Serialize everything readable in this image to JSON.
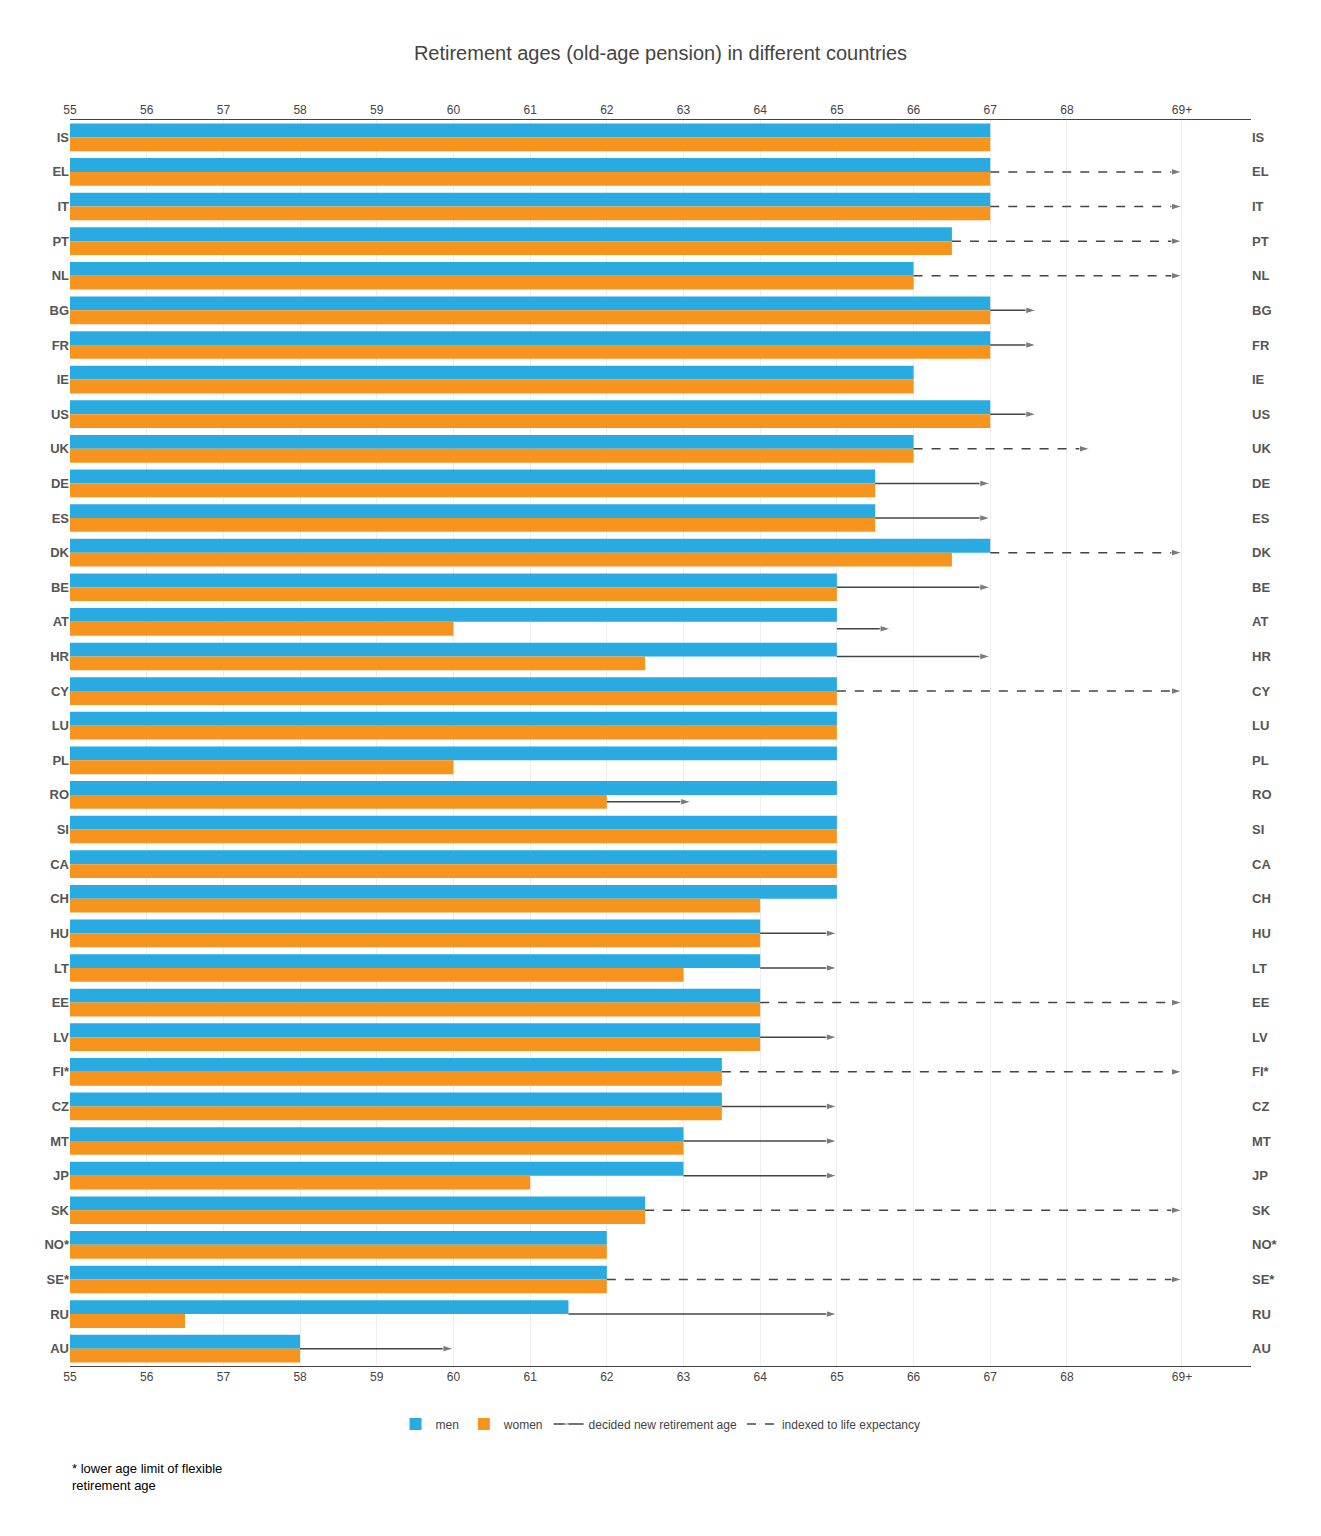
{
  "chart_data": {
    "type": "bar",
    "orientation": "horizontal",
    "title": "Retirement ages (old-age pension) in different countries",
    "categories": [
      "IS",
      "EL",
      "IT",
      "PT",
      "NL",
      "BG",
      "FR",
      "IE",
      "US",
      "UK",
      "DE",
      "ES",
      "DK",
      "BE",
      "AT",
      "HR",
      "CY",
      "LU",
      "PL",
      "RO",
      "SI",
      "CA",
      "CH",
      "HU",
      "LT",
      "EE",
      "LV",
      "FI*",
      "CZ",
      "MT",
      "JP",
      "SK",
      "NO*",
      "SE*",
      "RU",
      "AU"
    ],
    "series": [
      {
        "name": "men",
        "color": "#29ABE2",
        "values": [
          67,
          67,
          67,
          66.5,
          66,
          67,
          67,
          66,
          67,
          66,
          65.5,
          65.5,
          67,
          65,
          65,
          65,
          65,
          65,
          65,
          65,
          65,
          65,
          65,
          64,
          64,
          64,
          64,
          63.5,
          63.5,
          63,
          63,
          62.5,
          62,
          62,
          61.5,
          58
        ]
      },
      {
        "name": "women",
        "color": "#F7941D",
        "values": [
          67,
          67,
          67,
          66.5,
          66,
          67,
          67,
          66,
          67,
          66,
          65.5,
          65.5,
          66.5,
          65,
          60,
          62.5,
          65,
          65,
          60,
          62,
          65,
          65,
          64,
          64,
          63,
          64,
          64,
          63.5,
          63.5,
          63,
          61,
          62.5,
          62,
          62,
          56.5,
          58
        ]
      }
    ],
    "arrows": [
      {
        "name": "decided new retirement age",
        "line_style": "solid",
        "color": "#444444",
        "items": [
          {
            "category": "BG",
            "from": 67,
            "to": 67.6
          },
          {
            "category": "FR",
            "from": 67,
            "to": 67.6
          },
          {
            "category": "US",
            "from": 67,
            "to": 67.6
          },
          {
            "category": "DE",
            "from": 65.5,
            "to": 67
          },
          {
            "category": "ES",
            "from": 65.5,
            "to": 67
          },
          {
            "category": "BE",
            "from": 65,
            "to": 67
          },
          {
            "category": "AT",
            "from": 65,
            "to": 65.7,
            "row": "women"
          },
          {
            "category": "HR",
            "from": 65,
            "to": 67
          },
          {
            "category": "RO",
            "from": 62,
            "to": 63.1,
            "row": "women"
          },
          {
            "category": "HU",
            "from": 64,
            "to": 65
          },
          {
            "category": "LT",
            "from": 64,
            "to": 65
          },
          {
            "category": "LV",
            "from": 64,
            "to": 65
          },
          {
            "category": "CZ",
            "from": 63.5,
            "to": 65
          },
          {
            "category": "MT",
            "from": 63,
            "to": 65
          },
          {
            "category": "JP",
            "from": 63,
            "to": 65
          },
          {
            "category": "RU",
            "from": 61.5,
            "to": 65
          },
          {
            "category": "AU",
            "from": 58,
            "to": 60
          }
        ]
      },
      {
        "name": "indexed to life expectancy",
        "line_style": "dashed",
        "color": "#444444",
        "items": [
          {
            "category": "EL",
            "from": 67,
            "to": 69.5
          },
          {
            "category": "IT",
            "from": 67,
            "to": 69.5
          },
          {
            "category": "PT",
            "from": 66.5,
            "to": 69.5
          },
          {
            "category": "NL",
            "from": 66,
            "to": 69.5
          },
          {
            "category": "UK",
            "from": 66,
            "to": 68.3
          },
          {
            "category": "DK",
            "from": 67,
            "to": 69.5
          },
          {
            "category": "CY",
            "from": 65,
            "to": 69.5
          },
          {
            "category": "EE",
            "from": 64,
            "to": 69.5
          },
          {
            "category": "FI*",
            "from": 63.5,
            "to": 69.5
          },
          {
            "category": "SK",
            "from": 62.5,
            "to": 69.5
          },
          {
            "category": "SE*",
            "from": 62,
            "to": 69.5
          }
        ]
      }
    ],
    "xlim": [
      55,
      70.4
    ],
    "xticks": [
      55,
      56,
      57,
      58,
      59,
      60,
      61,
      62,
      63,
      64,
      65,
      66,
      67,
      68,
      {
        "value": 69.5,
        "label": "69+"
      }
    ],
    "grid": true,
    "legend": "bottom",
    "annotations": [
      "* lower age limit of flexible\nretirement age"
    ]
  }
}
